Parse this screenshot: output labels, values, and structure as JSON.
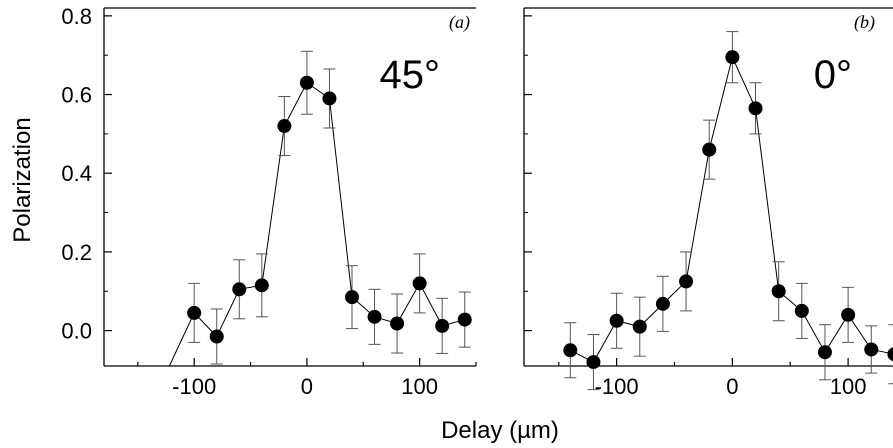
{
  "chart_data": [
    {
      "type": "scatter",
      "panel_label": "(a)",
      "angle_label": "45°",
      "ylabel": "Polarization",
      "xlim": [
        -180,
        150
      ],
      "ylim": [
        -0.09,
        0.82
      ],
      "xticks": [
        -100,
        0,
        100
      ],
      "xtick_labels": [
        "-100",
        "0",
        "100"
      ],
      "yticks": [
        0.0,
        0.2,
        0.4,
        0.6,
        0.8
      ],
      "ytick_labels": [
        "0.0",
        "0.2",
        "0.4",
        "0.6",
        "0.8"
      ],
      "series": [
        {
          "x": [
            -100,
            -80,
            -60,
            -40,
            -20,
            0,
            20,
            40,
            60,
            80,
            100,
            120,
            140
          ],
          "y": [
            0.045,
            -0.015,
            0.105,
            0.115,
            0.52,
            0.63,
            0.59,
            0.085,
            0.035,
            0.018,
            0.12,
            0.012,
            0.028
          ],
          "err": [
            0.075,
            0.07,
            0.075,
            0.08,
            0.075,
            0.08,
            0.075,
            0.08,
            0.07,
            0.075,
            0.075,
            0.07,
            0.07
          ],
          "line_start": [
            -122,
            -0.09
          ]
        }
      ]
    },
    {
      "type": "scatter",
      "panel_label": "(b)",
      "angle_label": "0°",
      "xlim": [
        -180,
        150
      ],
      "ylim": [
        -0.09,
        0.82
      ],
      "xticks": [
        -100,
        0,
        100
      ],
      "xtick_labels": [
        "-100",
        "0",
        "100"
      ],
      "yticks": [
        0.0,
        0.2,
        0.4,
        0.6,
        0.8
      ],
      "series": [
        {
          "x": [
            -140,
            -120,
            -100,
            -80,
            -60,
            -40,
            -20,
            0,
            20,
            40,
            60,
            80,
            100,
            120,
            140
          ],
          "y": [
            -0.05,
            -0.08,
            0.025,
            0.01,
            0.068,
            0.125,
            0.46,
            0.695,
            0.565,
            0.1,
            0.05,
            -0.055,
            0.04,
            -0.048,
            -0.06
          ],
          "err": [
            0.07,
            0.07,
            0.07,
            0.075,
            0.07,
            0.075,
            0.075,
            0.065,
            0.065,
            0.075,
            0.07,
            0.07,
            0.07,
            0.06,
            0.075
          ]
        }
      ]
    }
  ],
  "xlabel": "Delay (µm)"
}
